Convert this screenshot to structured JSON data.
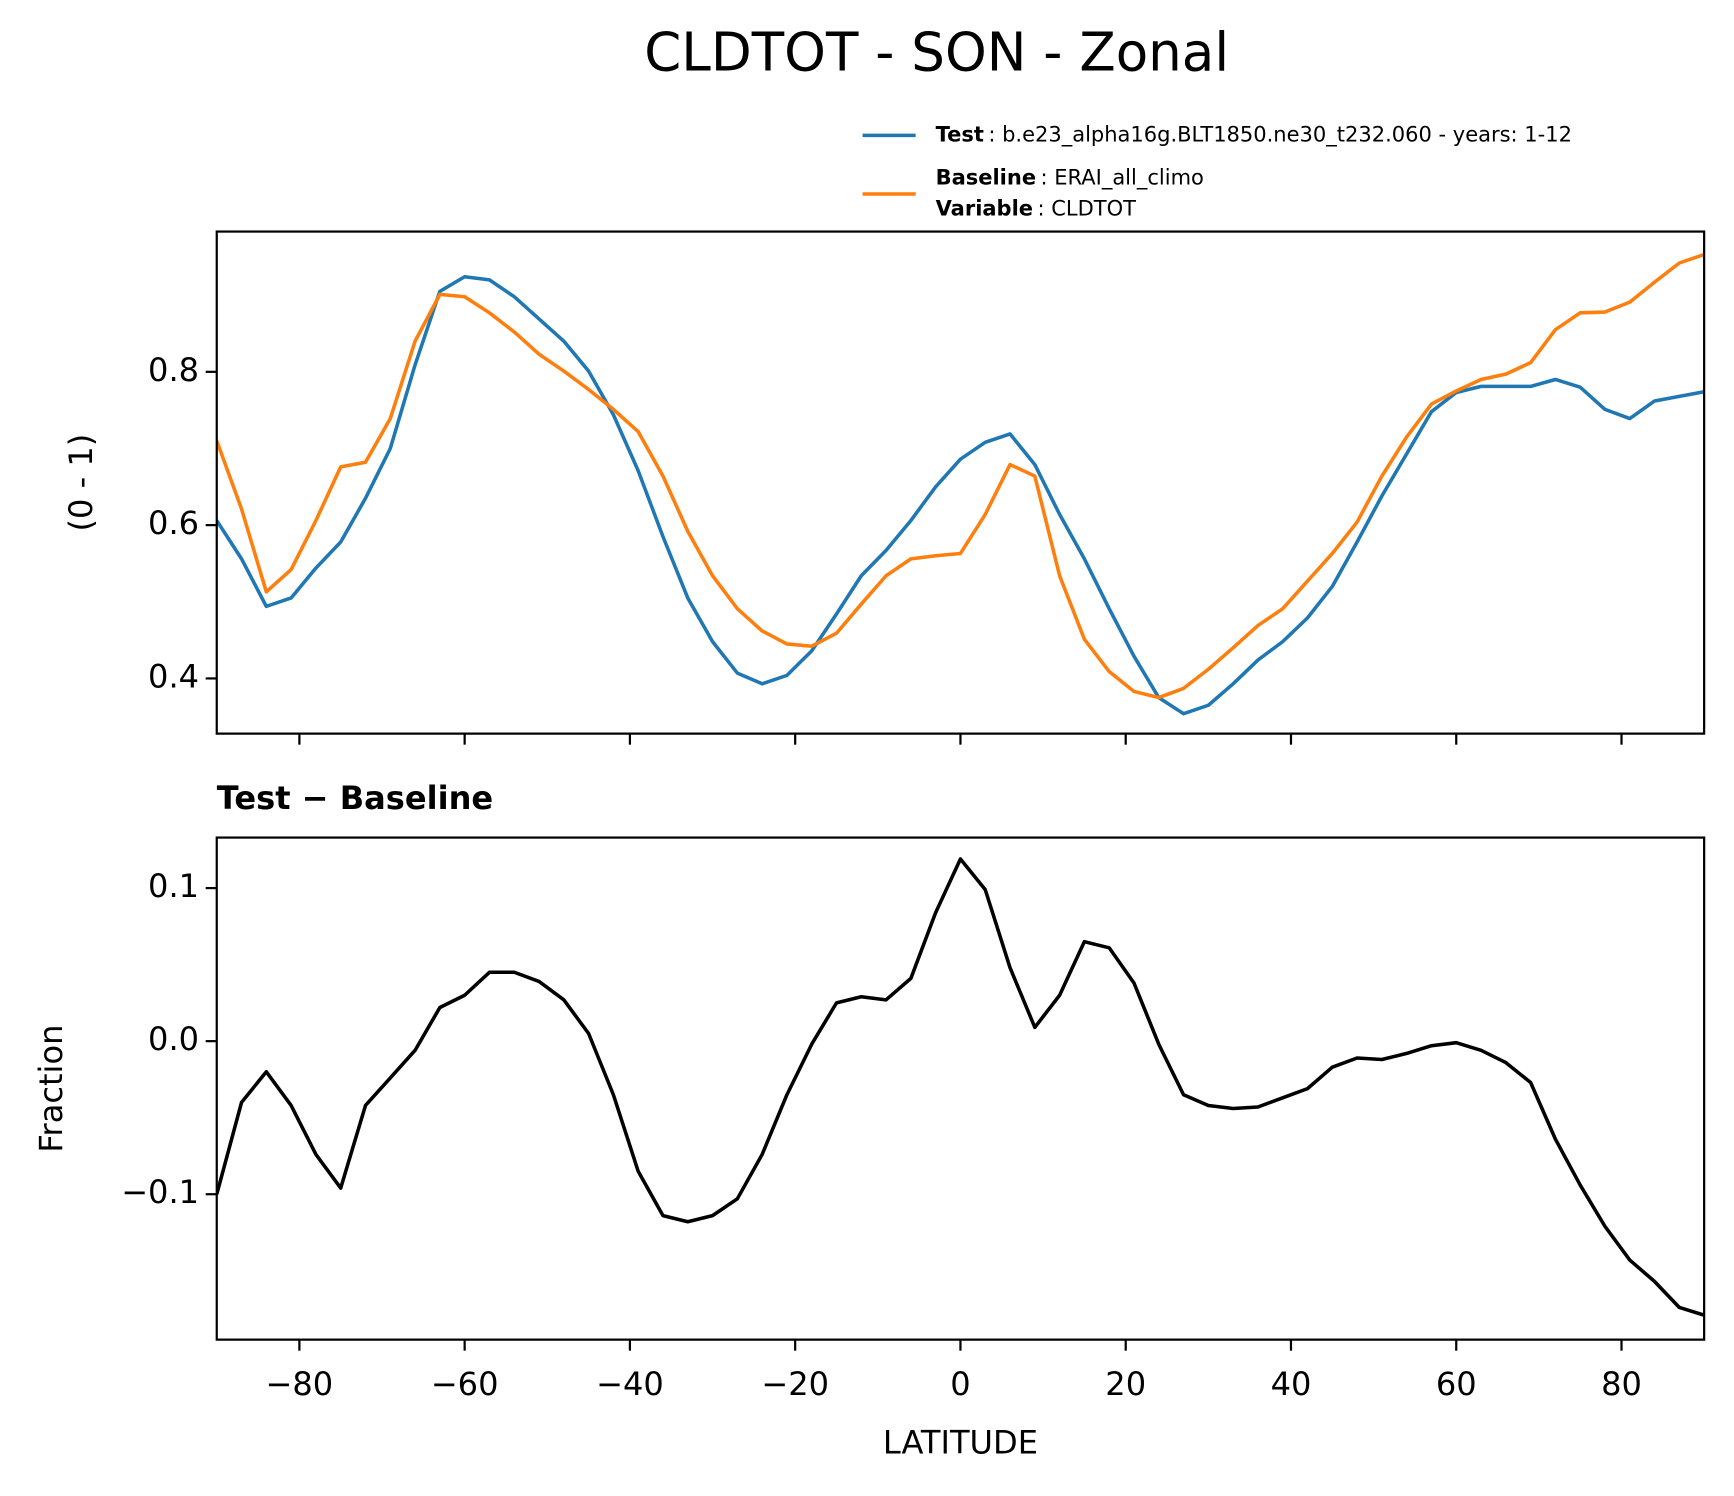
{
  "title": "CLDTOT - SON - Zonal",
  "chart_data": [
    {
      "type": "line",
      "ylabel": "(0 - 1)",
      "x": [
        -90,
        -87,
        -84,
        -81,
        -78,
        -75,
        -72,
        -69,
        -66,
        -63,
        -60,
        -57,
        -54,
        -51,
        -48,
        -45,
        -42,
        -39,
        -36,
        -33,
        -30,
        -27,
        -24,
        -21,
        -18,
        -15,
        -12,
        -9,
        -6,
        -3,
        0,
        3,
        6,
        9,
        12,
        15,
        18,
        21,
        24,
        27,
        30,
        33,
        36,
        39,
        42,
        45,
        48,
        51,
        54,
        57,
        60,
        63,
        66,
        69,
        72,
        75,
        78,
        81,
        84,
        87,
        90
      ],
      "series": [
        {
          "name": "Test",
          "detail": ": b.e23_alpha16g.BLT1850.ne30_t232.060 - years: 1-12",
          "color": "#1f77b4",
          "values": [
            0.606,
            0.556,
            0.494,
            0.505,
            0.544,
            0.578,
            0.635,
            0.7,
            0.809,
            0.905,
            0.924,
            0.92,
            0.898,
            0.869,
            0.84,
            0.801,
            0.744,
            0.671,
            0.585,
            0.505,
            0.448,
            0.407,
            0.393,
            0.404,
            0.436,
            0.484,
            0.534,
            0.567,
            0.606,
            0.65,
            0.686,
            0.708,
            0.719,
            0.679,
            0.614,
            0.556,
            0.491,
            0.429,
            0.375,
            0.354,
            0.365,
            0.393,
            0.424,
            0.448,
            0.479,
            0.52,
            0.578,
            0.638,
            0.693,
            0.748,
            0.773,
            0.781,
            0.781,
            0.781,
            0.79,
            0.78,
            0.751,
            0.739,
            0.762,
            0.768,
            0.774
          ]
        },
        {
          "name": "Baseline",
          "detail": ": ERAI_all_climo",
          "color": "#ff7f0e",
          "values": [
            0.71,
            0.621,
            0.513,
            0.542,
            0.606,
            0.676,
            0.682,
            0.739,
            0.84,
            0.901,
            0.898,
            0.877,
            0.852,
            0.823,
            0.801,
            0.777,
            0.751,
            0.722,
            0.664,
            0.592,
            0.534,
            0.491,
            0.462,
            0.445,
            0.442,
            0.459,
            0.497,
            0.534,
            0.556,
            0.56,
            0.563,
            0.614,
            0.679,
            0.664,
            0.534,
            0.451,
            0.409,
            0.383,
            0.375,
            0.387,
            0.412,
            0.44,
            0.469,
            0.491,
            0.527,
            0.563,
            0.604,
            0.664,
            0.715,
            0.758,
            0.775,
            0.79,
            0.797,
            0.812,
            0.855,
            0.877,
            0.878,
            0.891,
            0.917,
            0.942,
            0.953
          ]
        }
      ],
      "legend_extra": {
        "label": "Variable",
        "detail": ": CLDTOT"
      },
      "xlim": [
        -90,
        90
      ],
      "xticks": [
        -80,
        -60,
        -40,
        -20,
        0,
        20,
        40,
        60,
        80
      ],
      "ylim": [
        0.328,
        0.983
      ],
      "yticks": [
        0.4,
        0.6,
        0.8
      ]
    },
    {
      "type": "line",
      "title": "Test − Baseline",
      "xlabel": "LATITUDE",
      "ylabel": "Fraction",
      "color": "#000000",
      "x": [
        -90,
        -87,
        -84,
        -81,
        -78,
        -75,
        -72,
        -69,
        -66,
        -63,
        -60,
        -57,
        -54,
        -51,
        -48,
        -45,
        -42,
        -39,
        -36,
        -33,
        -30,
        -27,
        -24,
        -21,
        -18,
        -15,
        -12,
        -9,
        -6,
        -3,
        0,
        3,
        6,
        9,
        12,
        15,
        18,
        21,
        24,
        27,
        30,
        33,
        36,
        39,
        42,
        45,
        48,
        51,
        54,
        57,
        60,
        63,
        66,
        69,
        72,
        75,
        78,
        81,
        84,
        87,
        90
      ],
      "values": [
        -0.1,
        -0.04,
        -0.02,
        -0.042,
        -0.074,
        -0.096,
        -0.042,
        -0.024,
        -0.006,
        0.022,
        0.03,
        0.045,
        0.045,
        0.039,
        0.027,
        0.005,
        -0.035,
        -0.085,
        -0.114,
        -0.118,
        -0.114,
        -0.103,
        -0.074,
        -0.035,
        -0.002,
        0.025,
        0.029,
        0.027,
        0.041,
        0.084,
        0.119,
        0.099,
        0.048,
        0.009,
        0.03,
        0.065,
        0.061,
        0.038,
        -0.002,
        -0.035,
        -0.042,
        -0.044,
        -0.043,
        -0.037,
        -0.031,
        -0.017,
        -0.011,
        -0.012,
        -0.008,
        -0.003,
        -0.001,
        -0.006,
        -0.014,
        -0.027,
        -0.064,
        -0.094,
        -0.121,
        -0.143,
        -0.157,
        -0.174,
        -0.179
      ],
      "xlim": [
        -90,
        90
      ],
      "xticks": [
        {
          "value": -80,
          "label": "−80"
        },
        {
          "value": -60,
          "label": "−60"
        },
        {
          "value": -40,
          "label": "−40"
        },
        {
          "value": -20,
          "label": "−20"
        },
        0,
        20,
        40,
        60,
        80
      ],
      "ylim": [
        -0.195,
        0.133
      ],
      "yticks": [
        {
          "value": -0.1,
          "label": "−0.1"
        },
        {
          "value": 0,
          "label": "0.0"
        },
        0.1
      ]
    }
  ]
}
